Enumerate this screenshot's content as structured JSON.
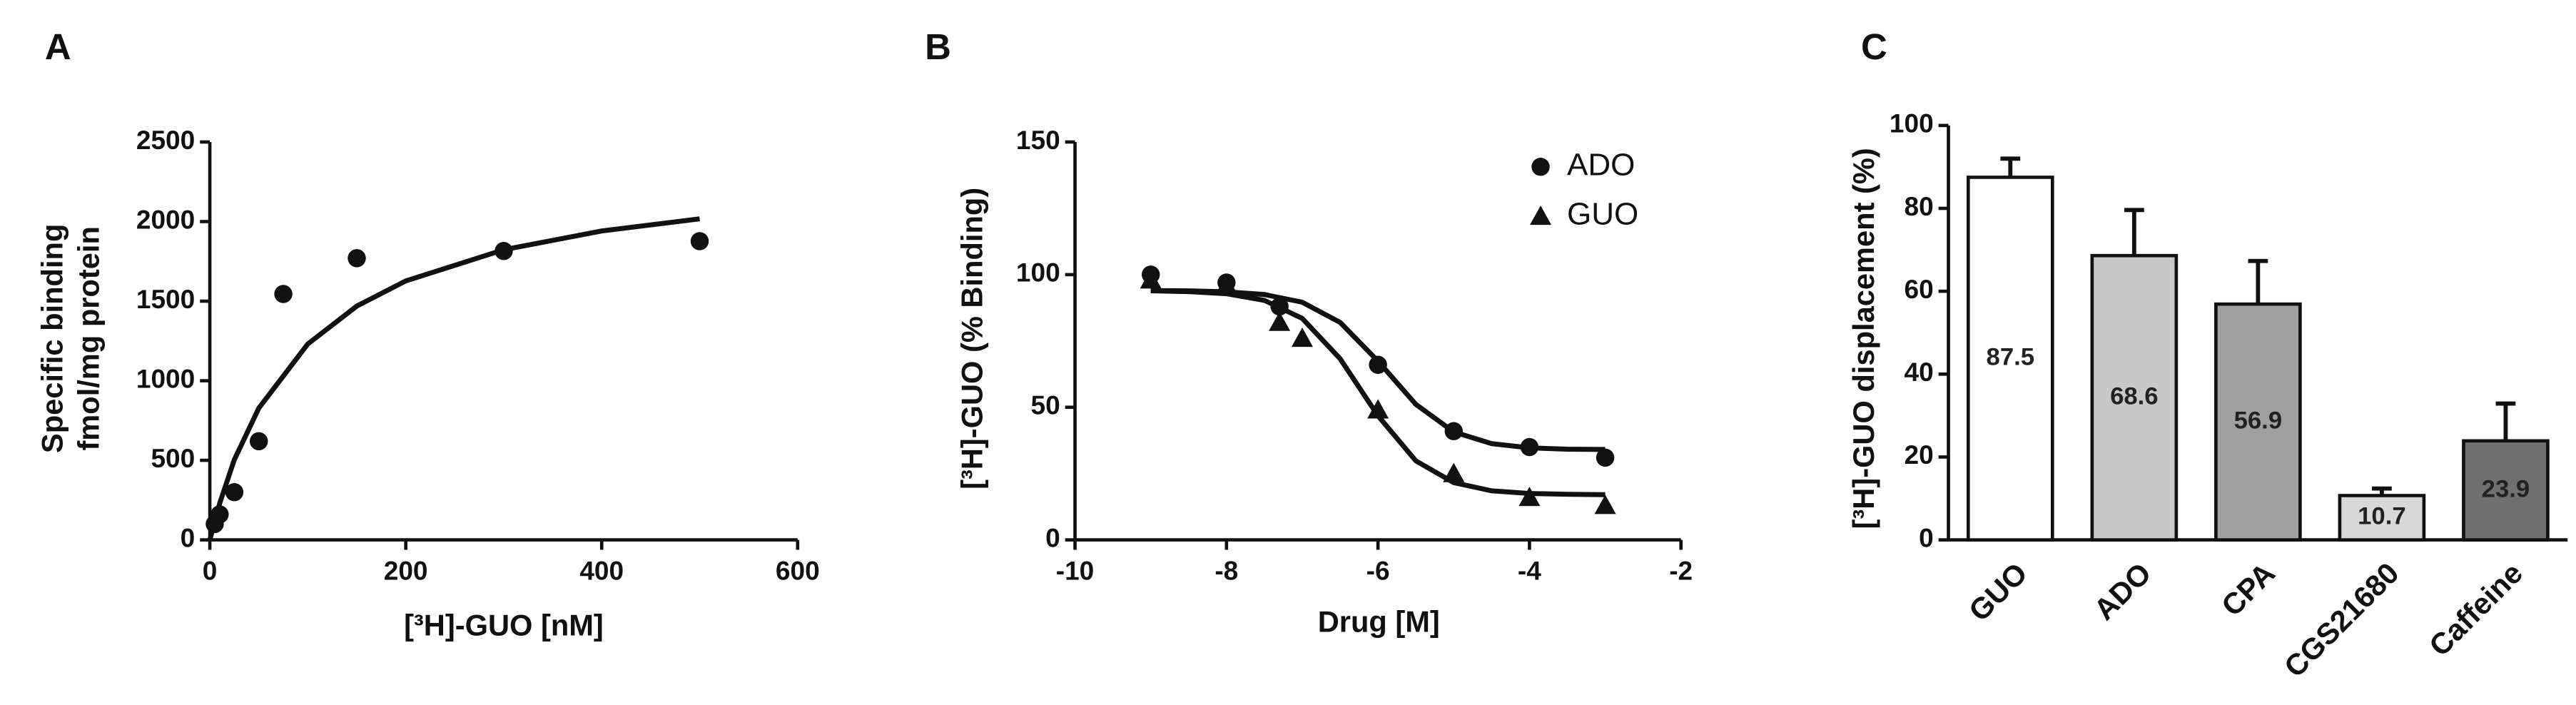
{
  "chart_data": [
    {
      "type": "scatter",
      "panel": "A",
      "xlabel": "[³H]-GUO [nM]",
      "ylabel": [
        "Specific binding",
        "fmol/mg protein"
      ],
      "x": [
        5,
        10,
        25,
        50,
        75,
        150,
        300,
        500
      ],
      "values": [
        100,
        160,
        300,
        620,
        1545,
        1770,
        1815,
        1877
      ],
      "fit": {
        "x": [
          0,
          10,
          25,
          50,
          100,
          150,
          200,
          300,
          400,
          500
        ],
        "values": [
          0,
          229,
          504,
          828,
          1231,
          1469,
          1627,
          1823,
          1941,
          2017
        ]
      },
      "color": "#111111",
      "xlim": [
        0,
        600
      ],
      "xticks": [
        0,
        200,
        400,
        600
      ],
      "ylim": [
        0,
        2500
      ],
      "yticks": [
        0,
        500,
        1000,
        1500,
        2000,
        2500
      ]
    },
    {
      "type": "scatter",
      "panel": "B",
      "xlabel": "Drug [M]",
      "ylabel": [
        "[³H]-GUO (% Binding)"
      ],
      "series": [
        {
          "name": "ADO",
          "marker": "circle",
          "color": "#111111",
          "x": [
            -9,
            -8,
            -7.3,
            -6,
            -5,
            -4,
            -3
          ],
          "values": [
            100,
            97,
            88,
            66,
            41,
            35,
            31
          ],
          "fit": {
            "x": [
              -9,
              -8.5,
              -8,
              -7.5,
              -7,
              -6.5,
              -6,
              -5.5,
              -5,
              -4.5,
              -4,
              -3.5,
              -3
            ],
            "values": [
              94,
              93.9,
              93.5,
              92.5,
              89.6,
              82,
              67.4,
              51.1,
              40.7,
              36.3,
              34.7,
              34.2,
              34.1
            ]
          }
        },
        {
          "name": "GUO",
          "marker": "triangle",
          "color": "#111111",
          "x": [
            -9,
            -8,
            -7.3,
            -7,
            -6,
            -5,
            -4,
            -3
          ],
          "values": [
            98,
            96,
            82,
            76,
            49,
            25,
            16,
            13
          ],
          "fit": {
            "x": [
              -9,
              -8.5,
              -8,
              -7.5,
              -7,
              -6.5,
              -6,
              -5.5,
              -5,
              -4.5,
              -4,
              -3.5,
              -3
            ],
            "values": [
              93.9,
              93.6,
              92.8,
              90.3,
              83.5,
              68.3,
              46.8,
              29.8,
              21.6,
              18.5,
              17.5,
              17.2,
              17.05
            ]
          }
        }
      ],
      "legend": "upper right",
      "xlim": [
        -10,
        -2
      ],
      "xticks": [
        -10,
        -8,
        -6,
        -4,
        -2
      ],
      "ylim": [
        0,
        150
      ],
      "yticks": [
        0,
        50,
        100,
        150
      ]
    },
    {
      "type": "bar",
      "panel": "C",
      "ylabel": [
        "[³H]-GUO displacement (%)"
      ],
      "categories": [
        "GUO",
        "ADO",
        "CPA",
        "CGS21680",
        "Caffeine"
      ],
      "values": [
        87.5,
        68.6,
        56.9,
        10.7,
        23.9
      ],
      "errors": [
        4.5,
        11,
        10.4,
        1.7,
        9
      ],
      "colors": [
        "#ffffff",
        "#c8c8c8",
        "#a0a0a0",
        "#d8d8d8",
        "#707070"
      ],
      "ylim": [
        0,
        100
      ],
      "yticks": [
        0,
        20,
        40,
        60,
        80,
        100
      ]
    }
  ]
}
